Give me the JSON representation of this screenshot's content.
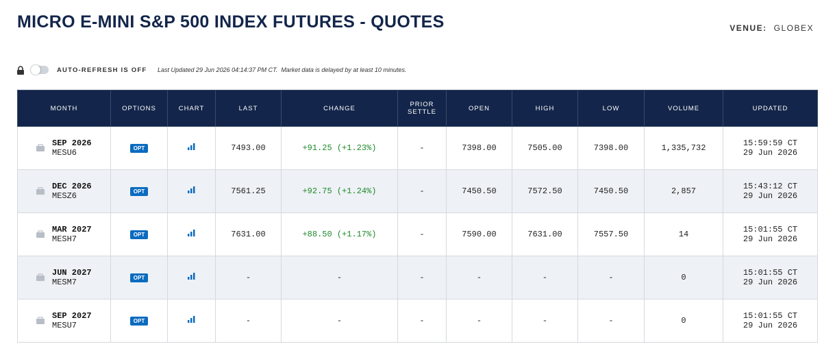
{
  "header": {
    "title": "MICRO E-MINI S&P 500 INDEX FUTURES - QUOTES",
    "venue_label": "VENUE:",
    "venue": "GLOBEX"
  },
  "toolbar": {
    "auto_refresh": "AUTO-REFRESH IS OFF",
    "last_updated": "Last Updated 29 Jun 2026 04:14:37 PM CT.",
    "delay_note": "Market data is delayed by at least 10 minutes."
  },
  "table": {
    "columns": [
      "MONTH",
      "OPTIONS",
      "CHART",
      "LAST",
      "CHANGE",
      "PRIOR SETTLE",
      "OPEN",
      "HIGH",
      "LOW",
      "VOLUME",
      "UPDATED"
    ],
    "rows": [
      {
        "month": "SEP 2026",
        "code": "MESU6",
        "options": "OPT",
        "last": "7493.00",
        "change": "+91.25 (+1.23%)",
        "prior_settle": "-",
        "open": "7398.00",
        "high": "7505.00",
        "low": "7398.00",
        "volume": "1,335,732",
        "updated_time": "15:59:59 CT",
        "updated_date": "29 Jun 2026"
      },
      {
        "month": "DEC 2026",
        "code": "MESZ6",
        "options": "OPT",
        "last": "7561.25",
        "change": "+92.75 (+1.24%)",
        "prior_settle": "-",
        "open": "7450.50",
        "high": "7572.50",
        "low": "7450.50",
        "volume": "2,857",
        "updated_time": "15:43:12 CT",
        "updated_date": "29 Jun 2026"
      },
      {
        "month": "MAR 2027",
        "code": "MESH7",
        "options": "OPT",
        "last": "7631.00",
        "change": "+88.50 (+1.17%)",
        "prior_settle": "-",
        "open": "7590.00",
        "high": "7631.00",
        "low": "7557.50",
        "volume": "14",
        "updated_time": "15:01:55 CT",
        "updated_date": "29 Jun 2026"
      },
      {
        "month": "JUN 2027",
        "code": "MESM7",
        "options": "OPT",
        "last": "-",
        "change": "-",
        "prior_settle": "-",
        "open": "-",
        "high": "-",
        "low": "-",
        "volume": "0",
        "updated_time": "15:01:55 CT",
        "updated_date": "29 Jun 2026"
      },
      {
        "month": "SEP 2027",
        "code": "MESU7",
        "options": "OPT",
        "last": "-",
        "change": "-",
        "prior_settle": "-",
        "open": "-",
        "high": "-",
        "low": "-",
        "volume": "0",
        "updated_time": "15:01:55 CT",
        "updated_date": "29 Jun 2026"
      }
    ]
  }
}
